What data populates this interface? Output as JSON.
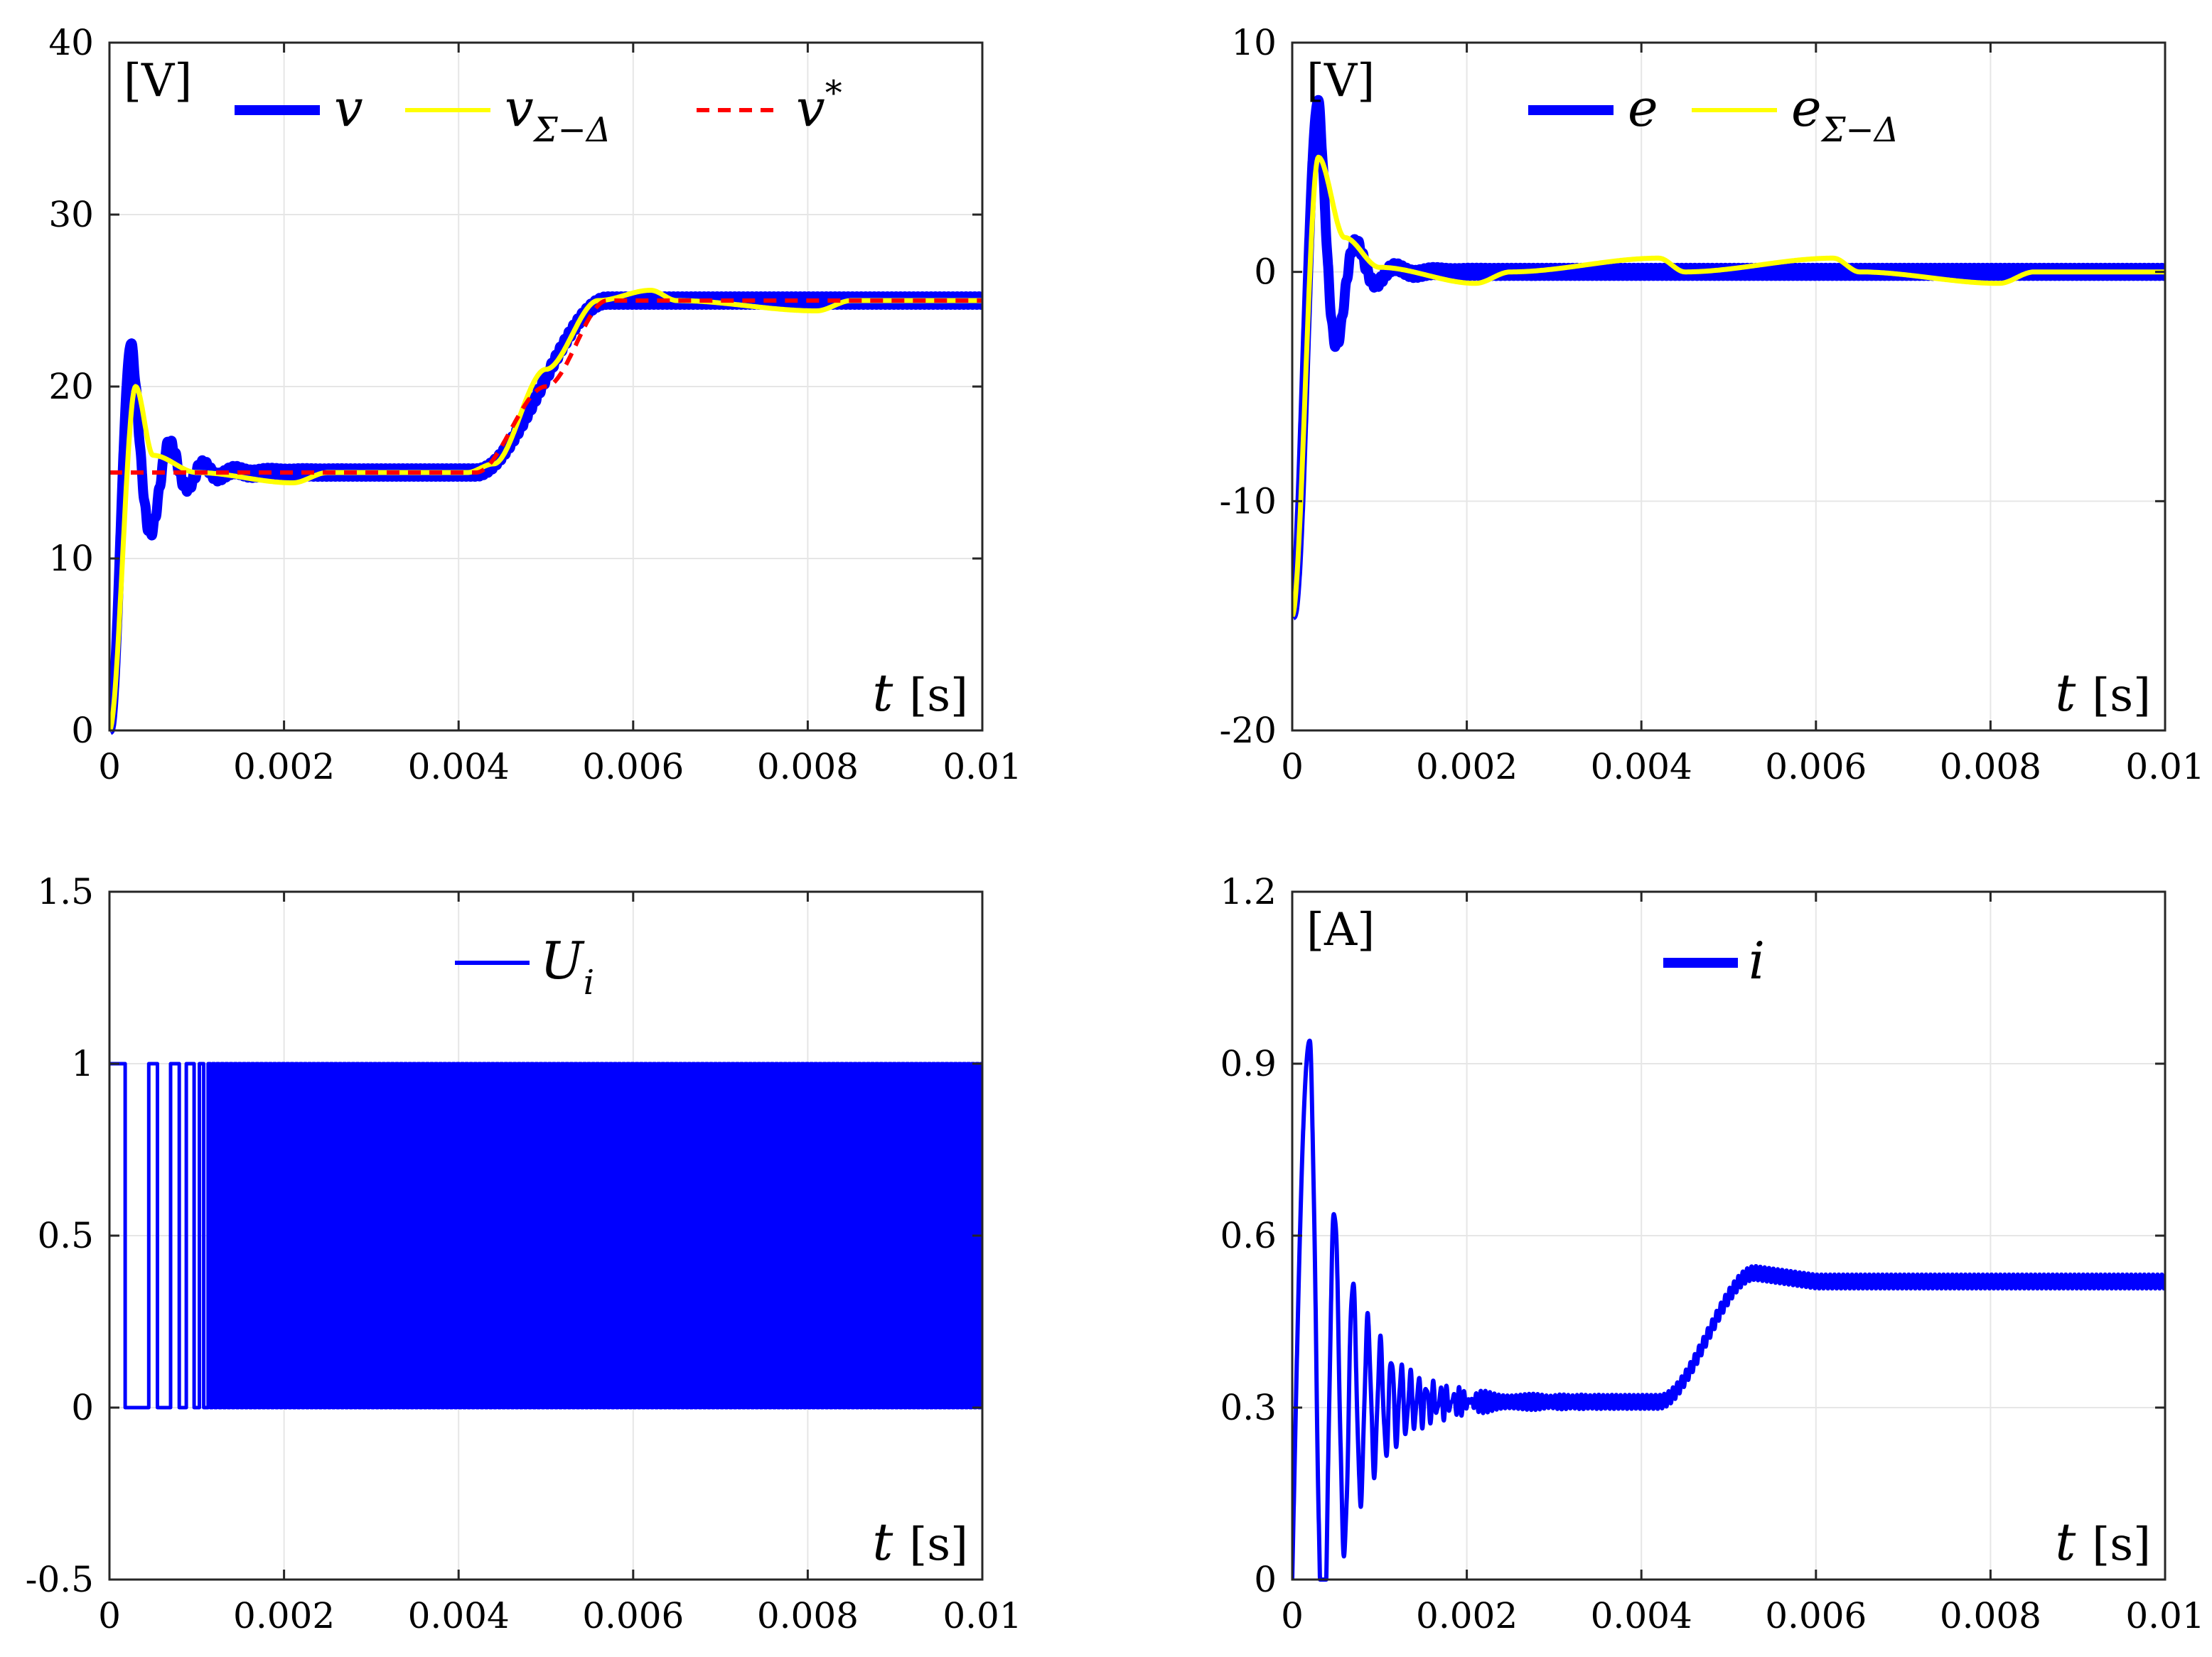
{
  "colors": {
    "blue": "#0000ff",
    "yellow": "#ffff00",
    "red": "#ff0000",
    "grid": "#e6e6e6",
    "axis": "#262626"
  },
  "chart_data": [
    {
      "id": "voltage",
      "type": "line",
      "unit_label": "[V]",
      "xlabel_var": "t",
      "xlabel_unit": "[s]",
      "xlim": [
        0,
        0.01
      ],
      "ylim": [
        0,
        40
      ],
      "xticks": [
        0,
        0.002,
        0.004,
        0.006,
        0.008,
        0.01
      ],
      "xtick_labels": [
        "0",
        "0.002",
        "0.004",
        "0.006",
        "0.008",
        "0.01"
      ],
      "yticks": [
        0,
        10,
        20,
        30,
        40
      ],
      "ytick_labels": [
        "0",
        "10",
        "20",
        "30",
        "40"
      ],
      "legend": [
        {
          "name": "v",
          "sub": "",
          "sup": "",
          "color": "#0000ff",
          "style": "thick"
        },
        {
          "name": "v",
          "sub": "Σ−Δ",
          "sup": "",
          "color": "#ffff00",
          "style": "solid"
        },
        {
          "name": "v",
          "sub": "",
          "sup": "*",
          "color": "#ff0000",
          "style": "dashed"
        }
      ],
      "series": [
        {
          "name": "v",
          "kind": "v_blue",
          "color": "#0000ff",
          "width": 14,
          "keypoints": [
            [
              0,
              0
            ],
            [
              0.0003,
              22.5
            ],
            [
              0.0005,
              12.5
            ],
            [
              0.0006,
              16.5
            ],
            [
              0.0007,
              13.5
            ],
            [
              0.001,
              15.2
            ],
            [
              0.0015,
              14.8
            ],
            [
              0.0041,
              14.8
            ],
            [
              0.0049,
              21
            ],
            [
              0.0056,
              25
            ],
            [
              0.01,
              25
            ]
          ]
        },
        {
          "name": "v_Σ−Δ",
          "kind": "v_yellow",
          "color": "#ffff00",
          "width": 7,
          "keypoints": [
            [
              0,
              0
            ],
            [
              0.0003,
              20
            ],
            [
              0.0005,
              16
            ],
            [
              0.001,
              15
            ],
            [
              0.0021,
              14.4
            ],
            [
              0.0025,
              15
            ],
            [
              0.0041,
              15
            ],
            [
              0.0044,
              15.5
            ],
            [
              0.005,
              21
            ],
            [
              0.0056,
              25
            ],
            [
              0.0062,
              25.6
            ],
            [
              0.0065,
              25
            ],
            [
              0.0081,
              24.4
            ],
            [
              0.0085,
              25
            ],
            [
              0.01,
              25
            ]
          ]
        },
        {
          "name": "v*",
          "kind": "v_ref",
          "color": "#ff0000",
          "width": 6,
          "dashed": true,
          "keypoints": [
            [
              0,
              15
            ],
            [
              0.0042,
              15
            ],
            [
              0.005,
              20
            ],
            [
              0.0057,
              25
            ],
            [
              0.01,
              25
            ]
          ]
        }
      ]
    },
    {
      "id": "error",
      "type": "line",
      "unit_label": "[V]",
      "xlabel_var": "t",
      "xlabel_unit": "[s]",
      "xlim": [
        0,
        0.01
      ],
      "ylim": [
        -20,
        10
      ],
      "xticks": [
        0,
        0.002,
        0.004,
        0.006,
        0.008,
        0.01
      ],
      "xtick_labels": [
        "0",
        "0.002",
        "0.004",
        "0.006",
        "0.008",
        "0.01"
      ],
      "yticks": [
        -20,
        -10,
        0,
        10
      ],
      "ytick_labels": [
        "-20",
        "-10",
        "0",
        "10"
      ],
      "legend": [
        {
          "name": "e",
          "sub": "",
          "sup": "",
          "color": "#0000ff",
          "style": "thick"
        },
        {
          "name": "e",
          "sub": "Σ−Δ",
          "sup": "",
          "color": "#ffff00",
          "style": "solid"
        }
      ],
      "series": [
        {
          "name": "e",
          "kind": "e_blue",
          "color": "#0000ff",
          "width": 14,
          "keypoints": [
            [
              0,
              -15
            ],
            [
              0.0003,
              7.5
            ],
            [
              0.0005,
              -2.5
            ],
            [
              0.0007,
              1.5
            ],
            [
              0.001,
              0.3
            ],
            [
              0.002,
              0
            ],
            [
              0.01,
              0
            ]
          ]
        },
        {
          "name": "e_Σ−Δ",
          "kind": "e_yellow",
          "color": "#ffff00",
          "width": 7,
          "keypoints": [
            [
              0,
              -15
            ],
            [
              0.0003,
              5
            ],
            [
              0.0006,
              1.5
            ],
            [
              0.001,
              0.2
            ],
            [
              0.0021,
              -0.5
            ],
            [
              0.0025,
              0
            ],
            [
              0.0042,
              0.6
            ],
            [
              0.0045,
              0
            ],
            [
              0.0062,
              0.6
            ],
            [
              0.0065,
              0
            ],
            [
              0.0081,
              -0.5
            ],
            [
              0.0085,
              0
            ],
            [
              0.01,
              0
            ]
          ]
        }
      ]
    },
    {
      "id": "switching",
      "type": "line",
      "unit_label": "",
      "xlabel_var": "t",
      "xlabel_unit": "[s]",
      "xlim": [
        0,
        0.01
      ],
      "ylim": [
        -0.5,
        1.5
      ],
      "xticks": [
        0,
        0.002,
        0.004,
        0.006,
        0.008,
        0.01
      ],
      "xtick_labels": [
        "0",
        "0.002",
        "0.004",
        "0.006",
        "0.008",
        "0.01"
      ],
      "yticks": [
        -0.5,
        0,
        0.5,
        1,
        1.5
      ],
      "ytick_labels": [
        "-0.5",
        "0",
        "0.5",
        "1",
        "1.5"
      ],
      "legend": [
        {
          "name": "U",
          "sub": "i",
          "sup": "",
          "color": "#0000ff",
          "style": "solid"
        }
      ],
      "series": [
        {
          "name": "U_i",
          "kind": "u_switch",
          "color": "#0000ff",
          "width": 5,
          "transitions_s": [
            0,
            0.00018,
            0.00045,
            0.00055,
            0.0007,
            0.0008,
            0.00088,
            0.00097,
            0.00103,
            0.00108,
            0.00113
          ],
          "steady_period_s": 5e-05,
          "levels": [
            0,
            1
          ]
        }
      ]
    },
    {
      "id": "current",
      "type": "line",
      "unit_label": "[A]",
      "xlabel_var": "t",
      "xlabel_unit": "[s]",
      "xlim": [
        0,
        0.01
      ],
      "ylim": [
        0,
        1.2
      ],
      "xticks": [
        0,
        0.002,
        0.004,
        0.006,
        0.008,
        0.01
      ],
      "xtick_labels": [
        "0",
        "0.002",
        "0.004",
        "0.006",
        "0.008",
        "0.01"
      ],
      "yticks": [
        0,
        0.3,
        0.6,
        0.9,
        1.2
      ],
      "ytick_labels": [
        "0",
        "0.3",
        "0.6",
        "0.9",
        "1.2"
      ],
      "legend": [
        {
          "name": "i",
          "sub": "",
          "sup": "",
          "color": "#0000ff",
          "style": "thick"
        }
      ],
      "series": [
        {
          "name": "i",
          "kind": "i_blue",
          "color": "#0000ff",
          "width": 6,
          "keypoints": [
            [
              0,
              0
            ],
            [
              0.0002,
              0.94
            ],
            [
              0.0005,
              0
            ],
            [
              0.0006,
              0.57
            ],
            [
              0.00075,
              0.1
            ],
            [
              0.0008,
              0.49
            ],
            [
              0.002,
              0.31
            ],
            [
              0.0042,
              0.31
            ],
            [
              0.0052,
              0.53
            ],
            [
              0.006,
              0.52
            ],
            [
              0.01,
              0.52
            ]
          ]
        }
      ]
    }
  ]
}
